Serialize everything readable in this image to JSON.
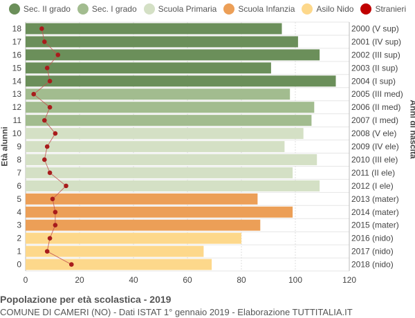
{
  "legend": [
    {
      "label": "Sec. II grado",
      "color": "#6b8f5a"
    },
    {
      "label": "Sec. I grado",
      "color": "#a2bc8f"
    },
    {
      "label": "Scuola Primaria",
      "color": "#d4e0c5"
    },
    {
      "label": "Scuola Infanzia",
      "color": "#ec9f57"
    },
    {
      "label": "Asilo Nido",
      "color": "#fdd88b"
    },
    {
      "label": "Stranieri",
      "color": "#c00000"
    }
  ],
  "footer": {
    "title": "Popolazione per età scolastica - 2019",
    "subtitle": "COMUNE DI CAMERI (NO) - Dati ISTAT 1° gennaio 2019 - Elaborazione TUTTITALIA.IT"
  },
  "chart_data": {
    "type": "bar",
    "orientation": "horizontal",
    "ylabel": "Età alunni",
    "ylabel_right": "Anni di nascita",
    "xlim": [
      0,
      120
    ],
    "xticks": [
      0,
      20,
      40,
      60,
      80,
      100,
      120
    ],
    "grid": true,
    "legend_position": "top",
    "categories": [
      "18",
      "17",
      "16",
      "15",
      "14",
      "13",
      "12",
      "11",
      "10",
      "9",
      "8",
      "7",
      "6",
      "5",
      "4",
      "3",
      "2",
      "1",
      "0"
    ],
    "birth_years": [
      "2000 (V sup)",
      "2001 (IV sup)",
      "2002 (III sup)",
      "2003 (II sup)",
      "2004 (I sup)",
      "2005 (III med)",
      "2006 (II med)",
      "2007 (I med)",
      "2008 (V ele)",
      "2009 (IV ele)",
      "2010 (III ele)",
      "2011 (II ele)",
      "2012 (I ele)",
      "2013 (mater)",
      "2014 (mater)",
      "2015 (mater)",
      "2016 (nido)",
      "2017 (nido)",
      "2018 (nido)"
    ],
    "values": [
      95,
      101,
      109,
      91,
      115,
      98,
      107,
      106,
      103,
      96,
      108,
      99,
      109,
      86,
      99,
      87,
      80,
      66,
      69
    ],
    "groups": [
      "Sec. II grado",
      "Sec. II grado",
      "Sec. II grado",
      "Sec. II grado",
      "Sec. II grado",
      "Sec. I grado",
      "Sec. I grado",
      "Sec. I grado",
      "Scuola Primaria",
      "Scuola Primaria",
      "Scuola Primaria",
      "Scuola Primaria",
      "Scuola Primaria",
      "Scuola Infanzia",
      "Scuola Infanzia",
      "Scuola Infanzia",
      "Asilo Nido",
      "Asilo Nido",
      "Asilo Nido"
    ],
    "stranieri": [
      6,
      7,
      12,
      8,
      9,
      3,
      9,
      7,
      11,
      8,
      7,
      9,
      15,
      10,
      11,
      11,
      9,
      8,
      17
    ]
  }
}
